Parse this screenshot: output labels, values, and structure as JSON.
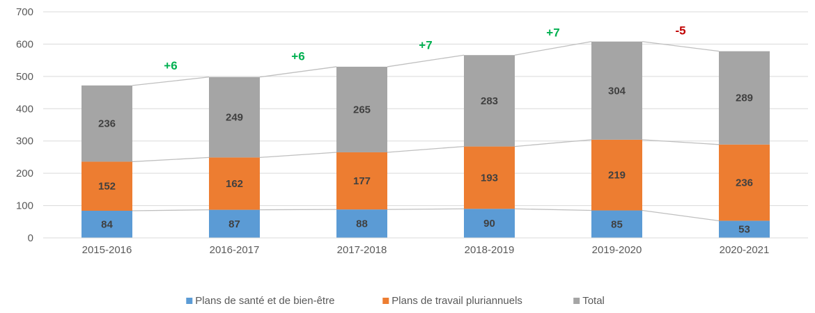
{
  "chart_data": {
    "type": "bar",
    "stacked": true,
    "categories": [
      "2015-2016",
      "2016-2017",
      "2017-2018",
      "2018-2019",
      "2019-2020",
      "2020-2021"
    ],
    "series": [
      {
        "name": "Plans de santé et de bien-être",
        "color": "#5b9bd5",
        "values": [
          84,
          87,
          88,
          90,
          85,
          53
        ]
      },
      {
        "name": "Plans de travail pluriannuels",
        "color": "#ed7d31",
        "values": [
          152,
          162,
          177,
          193,
          219,
          236
        ]
      },
      {
        "name": "Total",
        "color": "#a5a5a5",
        "values": [
          236,
          249,
          265,
          283,
          304,
          289
        ]
      }
    ],
    "changes": [
      "+6",
      "+6",
      "+7",
      "+7",
      "-5"
    ],
    "change_colors": {
      "positive": "#00b050",
      "negative": "#c00000"
    },
    "ylim": [
      0,
      700
    ],
    "yticks": [
      0,
      100,
      200,
      300,
      400,
      500,
      600,
      700
    ],
    "grid": true,
    "legend_position": "bottom",
    "series_lines": true
  }
}
